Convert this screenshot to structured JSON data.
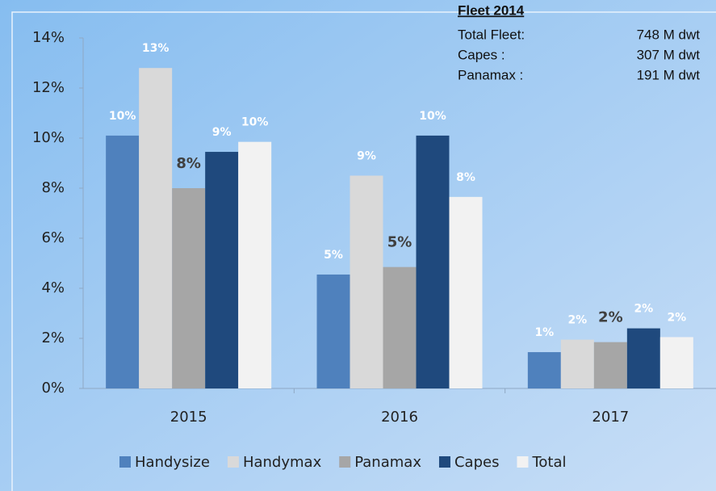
{
  "chart_data": {
    "type": "bar",
    "categories": [
      "2015",
      "2016",
      "2017"
    ],
    "series": [
      {
        "name": "Handysize",
        "color": "#4f81bd",
        "values": [
          10.1,
          4.55,
          1.45
        ],
        "value_labels": [
          "10%",
          "5%",
          "1%"
        ]
      },
      {
        "name": "Handymax",
        "color": "#d9d9d9",
        "values": [
          12.8,
          8.5,
          1.95
        ],
        "value_labels": [
          "13%",
          "9%",
          "2%"
        ]
      },
      {
        "name": "Panamax",
        "color": "#a6a6a6",
        "values": [
          8.0,
          4.85,
          1.85
        ],
        "value_labels": [
          "8%",
          "5%",
          "2%"
        ]
      },
      {
        "name": "Capes",
        "color": "#1f497d",
        "values": [
          9.45,
          10.1,
          2.4
        ],
        "value_labels": [
          "9%",
          "10%",
          "2%"
        ]
      },
      {
        "name": "Total",
        "color": "#f2f2f2",
        "values": [
          9.85,
          7.65,
          2.05
        ],
        "value_labels": [
          "10%",
          "8%",
          "2%"
        ]
      }
    ],
    "ylim": [
      0,
      14
    ],
    "yticks": [
      {
        "value": 0,
        "label": "0%"
      },
      {
        "value": 2,
        "label": "2%"
      },
      {
        "value": 4,
        "label": "4%"
      },
      {
        "value": 6,
        "label": "6%"
      },
      {
        "value": 8,
        "label": "8%"
      },
      {
        "value": 10,
        "label": "10%"
      },
      {
        "value": 12,
        "label": "12%"
      },
      {
        "value": 14,
        "label": "14%"
      }
    ],
    "grid": false,
    "legend": "bottom",
    "annotation": {
      "title": "Fleet 2014",
      "rows": [
        [
          "Total Fleet:",
          "748 M dwt"
        ],
        [
          "Capes :",
          "307 M dwt"
        ],
        [
          "Panamax :",
          "191 M dwt"
        ]
      ]
    }
  }
}
